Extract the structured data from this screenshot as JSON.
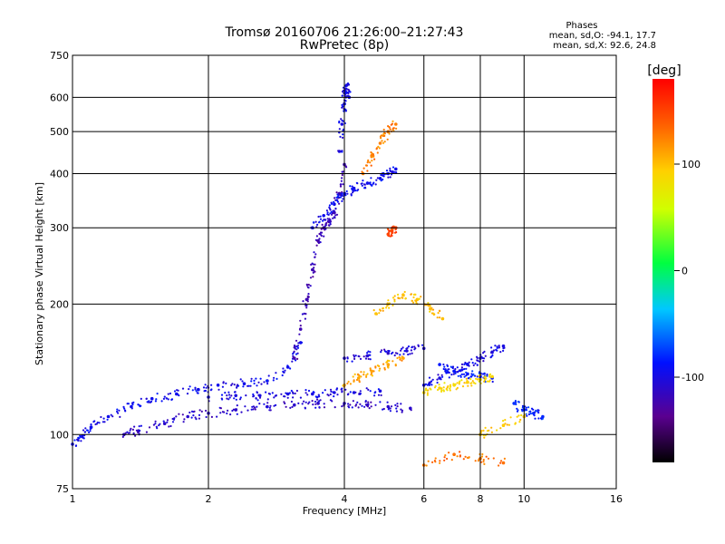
{
  "chart_data": {
    "type": "scatter",
    "title": "Tromsø 20160706 21:26:00–21:27:43",
    "subtitle": "RwPretec (8p)",
    "xlabel": "Frequency [MHz]",
    "ylabel": "Stationary phase Virtual Height [km]",
    "x_scale": "log",
    "y_scale": "log",
    "xlim": [
      1,
      16
    ],
    "ylim": [
      75,
      750
    ],
    "x_ticks": [
      1,
      2,
      4,
      6,
      8,
      10,
      16
    ],
    "y_ticks": [
      75,
      100,
      200,
      300,
      400,
      500,
      600,
      750
    ],
    "grid": true,
    "stats": {
      "title": "Phases",
      "line_o": "mean, sd,O: -94.1, 17.7",
      "line_x": "mean, sd,X:  92.6, 24.8"
    },
    "colorbar": {
      "label": "[deg]",
      "range": [
        -180,
        180
      ],
      "ticks": [
        100,
        0,
        -100
      ]
    },
    "series": [
      {
        "mode": "O",
        "traces": [
          {
            "x": [
              1.0,
              1.05,
              1.1,
              1.2,
              1.35,
              1.5,
              1.7,
              1.9,
              2.1,
              2.4,
              2.7,
              3.0,
              3.2
            ],
            "y": [
              95,
              99,
              104,
              110,
              116,
              121,
              124,
              127,
              130,
              131,
              133,
              143,
              163
            ],
            "phase": -95
          },
          {
            "x": [
              1.3,
              1.4,
              1.6,
              1.8,
              2.0,
              2.3,
              2.7,
              3.1,
              3.5,
              4.0,
              4.5,
              5.0,
              5.6
            ],
            "y": [
              100,
              102,
              106,
              110,
              112,
              114,
              116,
              117,
              118,
              118,
              117,
              116,
              115
            ],
            "phase": -110
          },
          {
            "x": [
              2.0,
              2.3,
              2.6,
              3.0,
              3.4,
              3.8,
              4.2,
              4.8
            ],
            "y": [
              122,
              123,
              123,
              124,
              124,
              125,
              125,
              126
            ],
            "phase": -100
          },
          {
            "x": [
              3.1,
              3.2,
              3.3,
              3.4,
              3.5,
              3.6,
              3.7,
              3.8,
              3.9,
              4.0
            ],
            "y": [
              150,
              175,
              205,
              240,
              280,
              300,
              310,
              325,
              360,
              420
            ],
            "phase": -120
          },
          {
            "x": [
              3.4,
              3.6,
              3.8,
              4.0,
              4.2,
              4.5,
              4.8,
              5.0,
              5.2
            ],
            "y": [
              300,
              320,
              340,
              360,
              370,
              380,
              390,
              400,
              410
            ],
            "phase": -95
          },
          {
            "x": [
              3.9,
              3.95,
              4.0,
              4.02,
              4.05,
              4.1
            ],
            "y": [
              450,
              520,
              580,
              620,
              640,
              600
            ],
            "phase": -100
          },
          {
            "x": [
              4.0,
              4.5,
              5.0,
              5.5,
              6.0
            ],
            "y": [
              150,
              152,
              154,
              156,
              158
            ],
            "phase": -105
          },
          {
            "x": [
              6.0,
              6.5,
              7.0,
              7.5,
              8.0,
              8.5,
              9.0
            ],
            "y": [
              130,
              135,
              140,
              145,
              150,
              155,
              160
            ],
            "phase": -100
          },
          {
            "x": [
              6.5,
              7.0,
              7.5,
              8.0,
              8.5
            ],
            "y": [
              145,
              140,
              138,
              136,
              135
            ],
            "phase": -85
          },
          {
            "x": [
              9.5,
              10.0,
              10.5,
              11.0
            ],
            "y": [
              118,
              114,
              112,
              110
            ],
            "phase": -80
          }
        ]
      },
      {
        "mode": "X",
        "traces": [
          {
            "x": [
              4.0,
              4.3,
              4.6,
              5.0,
              5.4
            ],
            "y": [
              130,
              135,
              140,
              145,
              150
            ],
            "phase": 110
          },
          {
            "x": [
              4.4,
              4.6,
              4.8,
              5.0,
              5.2
            ],
            "y": [
              400,
              440,
              470,
              500,
              520
            ],
            "phase": 125
          },
          {
            "x": [
              5.0,
              5.1,
              5.2
            ],
            "y": [
              290,
              295,
              300
            ],
            "phase": 150
          },
          {
            "x": [
              4.7,
              5.0,
              5.4,
              5.8,
              6.2,
              6.6
            ],
            "y": [
              190,
              200,
              210,
              205,
              195,
              185
            ],
            "phase": 100
          },
          {
            "x": [
              6.0,
              6.5,
              7.0,
              7.5,
              8.0,
              8.5
            ],
            "y": [
              125,
              128,
              130,
              132,
              134,
              136
            ],
            "phase": 90
          },
          {
            "x": [
              8.0,
              9.0,
              10.0
            ],
            "y": [
              100,
              105,
              110
            ],
            "phase": 95
          },
          {
            "x": [
              6.0,
              7.0,
              8.0,
              9.0
            ],
            "y": [
              85,
              90,
              88,
              86
            ],
            "phase": 130
          }
        ]
      }
    ]
  }
}
